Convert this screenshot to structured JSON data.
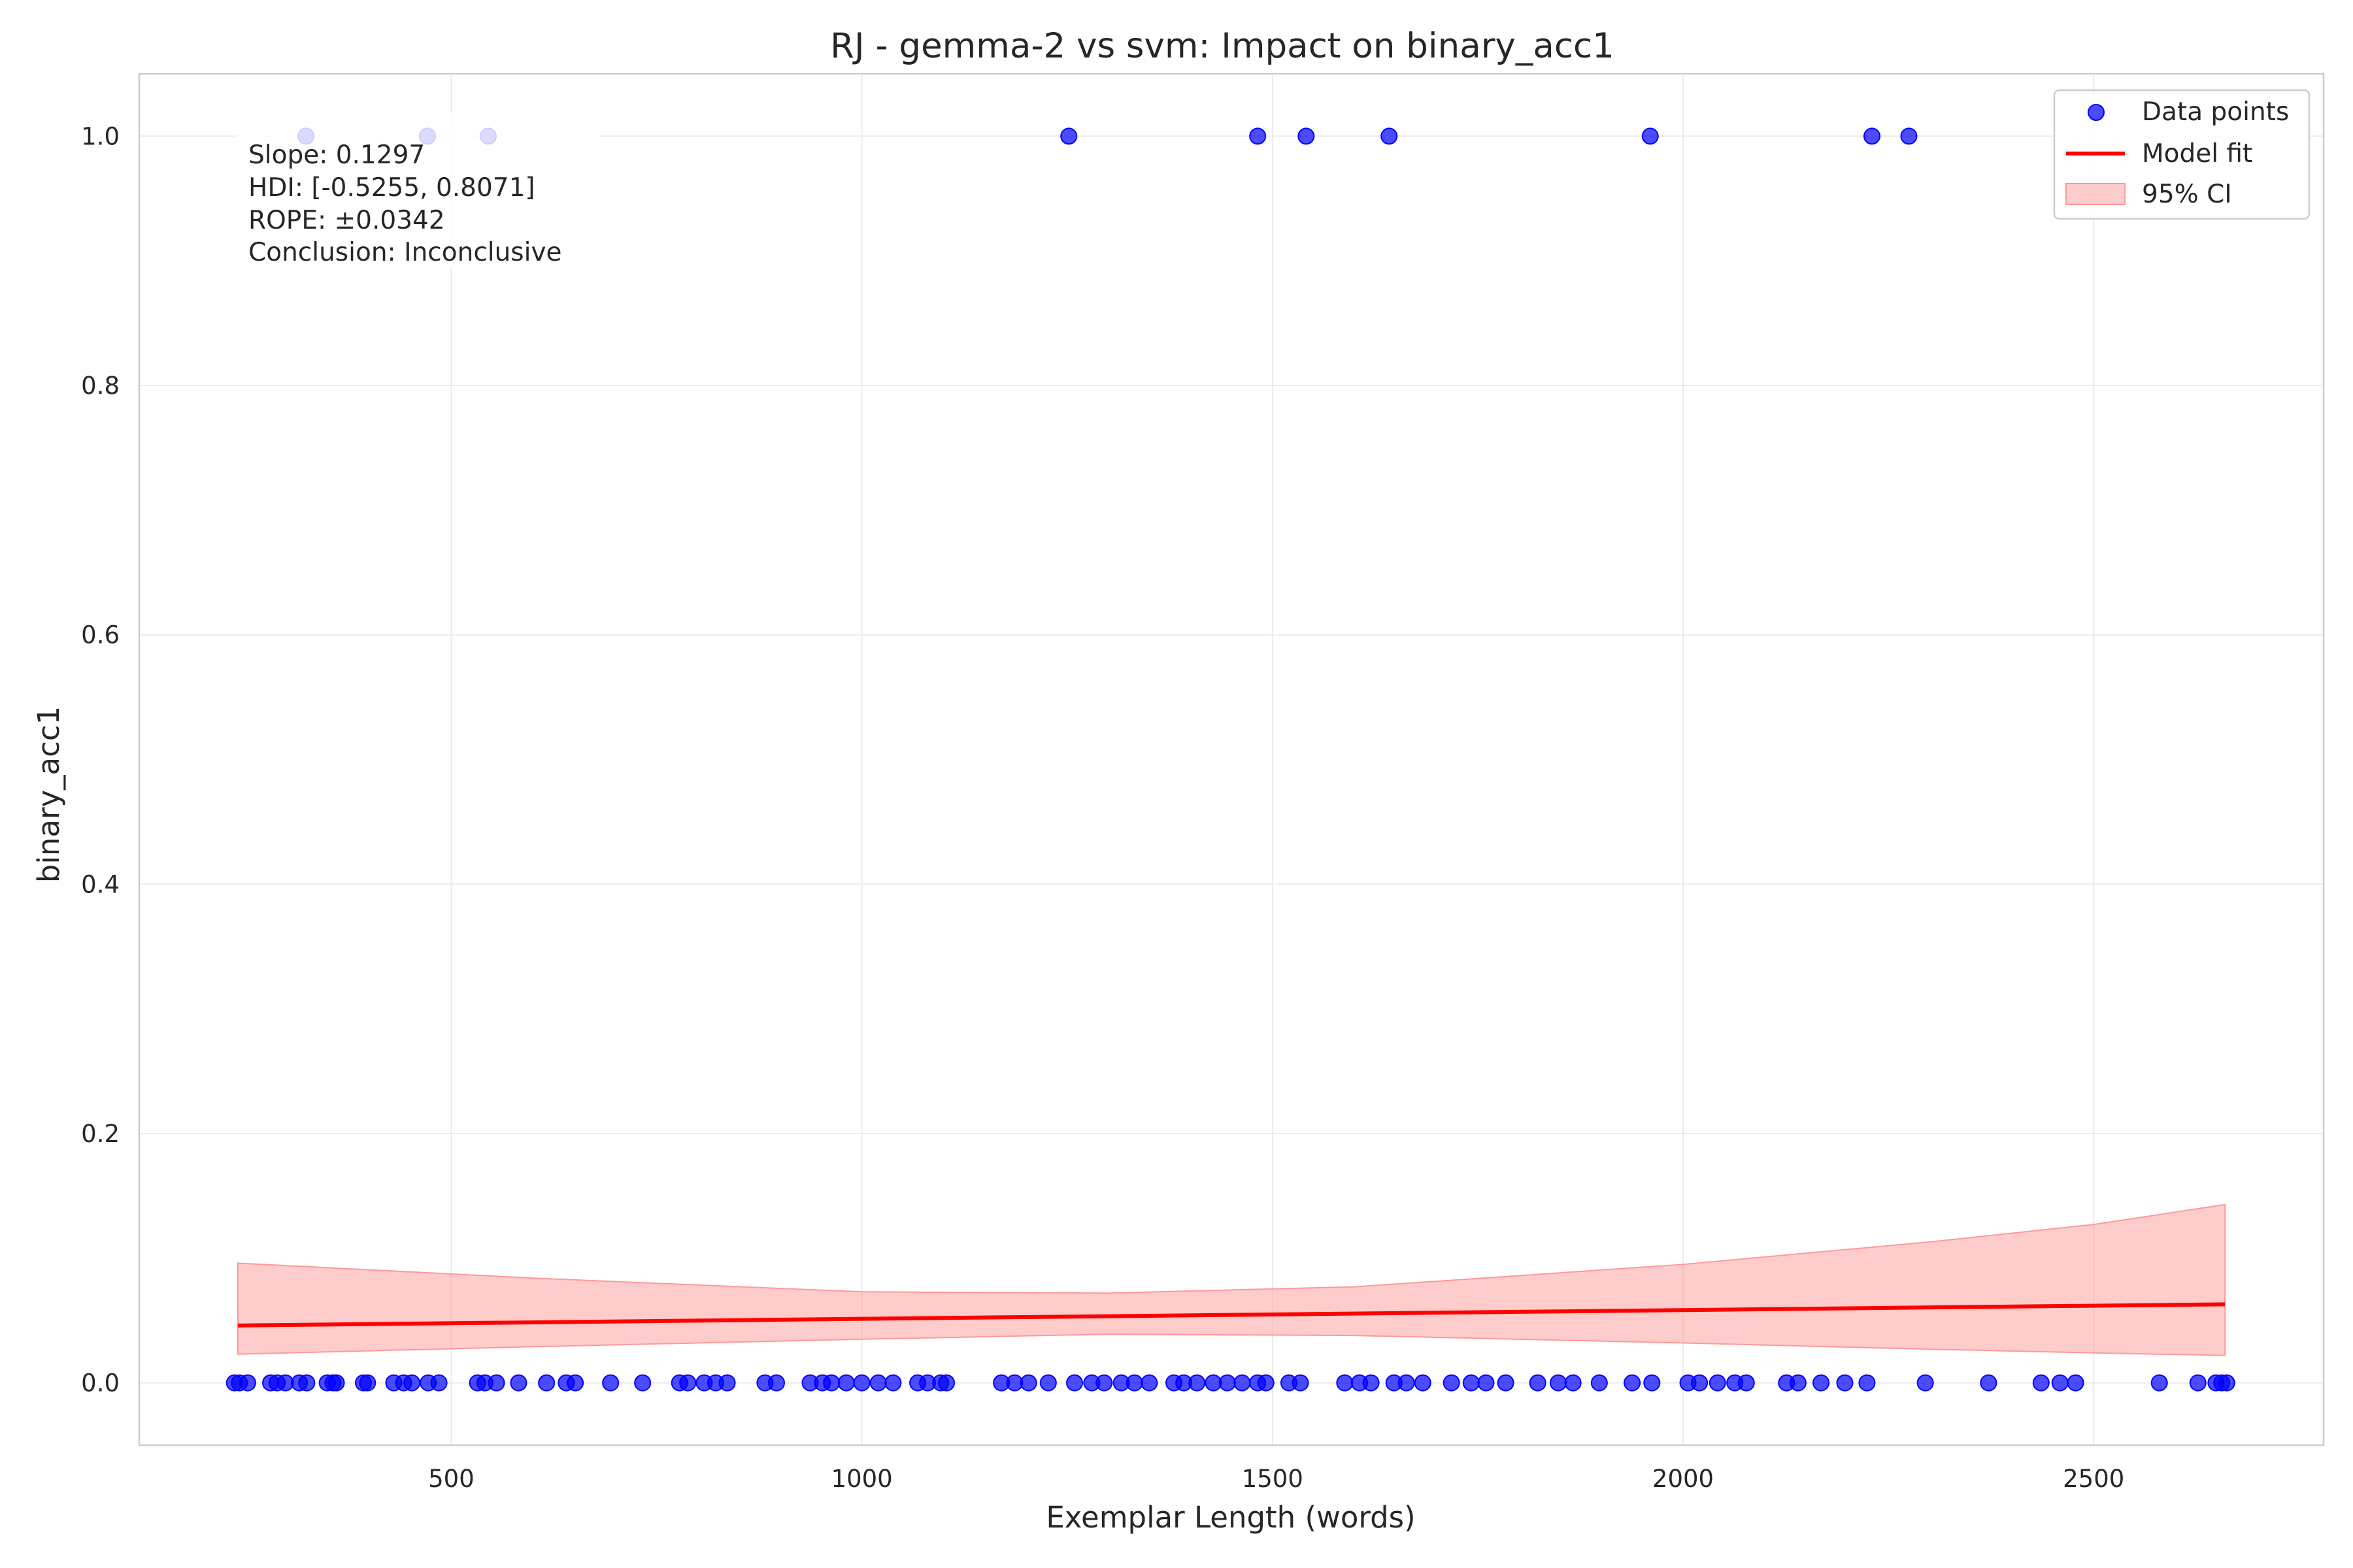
{
  "chart_data": {
    "type": "scatter",
    "title": "RJ - gemma-2 vs svm: Impact on binary_acc1",
    "xlabel": "Exemplar Length (words)",
    "ylabel": "binary_acc1",
    "xlim": [
      120,
      2780
    ],
    "ylim": [
      -0.05,
      1.05
    ],
    "x_ticks": [
      500,
      1000,
      1500,
      2000,
      2500
    ],
    "y_ticks": [
      0.0,
      0.2,
      0.4,
      0.6,
      0.8,
      1.0
    ],
    "x_tick_labels": [
      "500",
      "1000",
      "1500",
      "2000",
      "2500"
    ],
    "y_tick_labels": [
      "0.0",
      "0.2",
      "0.4",
      "0.6",
      "0.8",
      "1.0"
    ],
    "grid": true,
    "legend_position": "top-right",
    "legend": [
      "Data points",
      "Model fit",
      "95% CI"
    ],
    "colors": {
      "points": "#0000ff",
      "fit": "#ff0000",
      "ci": "#ff9999"
    },
    "annotation": [
      "Slope: 0.1297",
      "HDI: [-0.5255, 0.8071]",
      "ROPE: ±0.0342",
      "Conclusion: Inconclusive"
    ],
    "series": [
      {
        "name": "Data points",
        "points_y1": [
          323,
          471,
          545,
          1252,
          1482,
          1541,
          1642,
          1960,
          2230,
          2275
        ],
        "points_y0": [
          236,
          242,
          252,
          280,
          288,
          298,
          315,
          324,
          349,
          356,
          360,
          393,
          398,
          430,
          442,
          452,
          472,
          485,
          532,
          541,
          555,
          582,
          616,
          640,
          651,
          694,
          733,
          778,
          788,
          808,
          822,
          836,
          882,
          896,
          937,
          952,
          963,
          981,
          1000,
          1020,
          1038,
          1068,
          1080,
          1096,
          1103,
          1170,
          1186,
          1203,
          1227,
          1259,
          1280,
          1295,
          1316,
          1332,
          1350,
          1380,
          1392,
          1408,
          1428,
          1445,
          1463,
          1482,
          1492,
          1520,
          1534,
          1588,
          1606,
          1620,
          1648,
          1663,
          1683,
          1718,
          1742,
          1760,
          1784,
          1823,
          1848,
          1866,
          1898,
          1938,
          1962,
          2006,
          2020,
          2042,
          2063,
          2077,
          2126,
          2140,
          2168,
          2197,
          2224,
          2295,
          2372,
          2436,
          2459,
          2478,
          2580,
          2627,
          2649,
          2656,
          2662
        ]
      },
      {
        "name": "Model fit",
        "x": [
          240,
          2660
        ],
        "y": [
          0.046,
          0.063
        ]
      },
      {
        "name": "95% CI",
        "x": [
          240,
          600,
          1000,
          1300,
          1600,
          2000,
          2300,
          2500,
          2660
        ],
        "upper": [
          0.096,
          0.084,
          0.073,
          0.072,
          0.077,
          0.095,
          0.113,
          0.127,
          0.143
        ],
        "lower": [
          0.023,
          0.029,
          0.035,
          0.039,
          0.038,
          0.032,
          0.027,
          0.024,
          0.022
        ]
      }
    ]
  }
}
